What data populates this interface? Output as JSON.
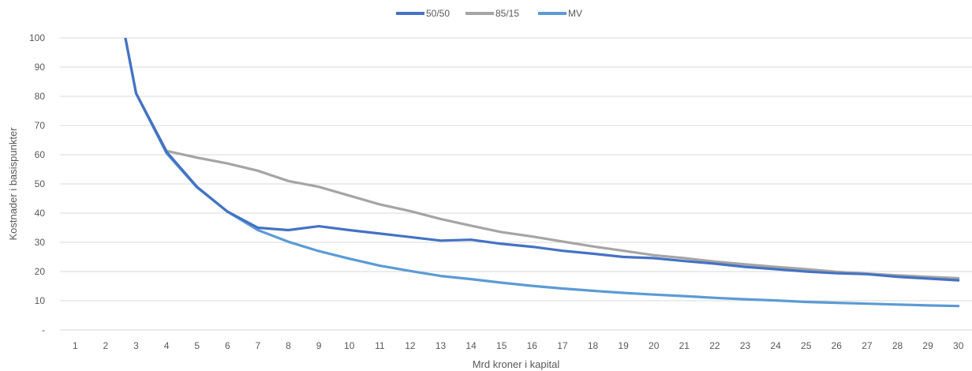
{
  "chart_data": {
    "type": "line",
    "xlabel": "Mrd kroner i kapital",
    "ylabel": "Kostnader i basispunkter",
    "x": [
      1,
      2,
      3,
      4,
      5,
      6,
      7,
      8,
      9,
      10,
      11,
      12,
      13,
      14,
      15,
      16,
      17,
      18,
      19,
      20,
      21,
      22,
      23,
      24,
      25,
      26,
      27,
      28,
      29,
      30
    ],
    "ylim": [
      0,
      100
    ],
    "y_ticks": [
      "-",
      "10",
      "20",
      "30",
      "40",
      "50",
      "60",
      "70",
      "80",
      "90",
      "100"
    ],
    "grid": true,
    "legend_position": "top-center",
    "series": [
      {
        "name": "50/50",
        "color": "#4472c4",
        "values": [
          null,
          135,
          81,
          61,
          49,
          40.5,
          35,
          34.2,
          35.5,
          34.2,
          33,
          31.8,
          30.6,
          30.9,
          29.5,
          28.5,
          27.1,
          26.1,
          25,
          24.6,
          23.6,
          22.7,
          21.6,
          20.8,
          20,
          19.4,
          19.1,
          18.2,
          17.6,
          17
        ]
      },
      {
        "name": "85/15",
        "color": "#a5a5a5",
        "values": [
          null,
          135,
          81,
          61.3,
          59,
          57,
          54.5,
          51,
          49,
          46,
          43,
          40.7,
          38,
          35.7,
          33.5,
          32,
          30.3,
          28.6,
          27.1,
          25.6,
          24.6,
          23.4,
          22.5,
          21.6,
          20.8,
          19.9,
          19.3,
          18.7,
          18.2,
          17.7
        ]
      },
      {
        "name": "MV",
        "color": "#5b9bd5",
        "values": [
          null,
          135,
          81,
          60.5,
          48.8,
          40.5,
          34.2,
          30.2,
          27,
          24.4,
          22,
          20.2,
          18.5,
          17.4,
          16.2,
          15.1,
          14.2,
          13.4,
          12.7,
          12.1,
          11.6,
          11,
          10.5,
          10.1,
          9.6,
          9.3,
          9,
          8.7,
          8.4,
          8.2
        ]
      }
    ]
  }
}
